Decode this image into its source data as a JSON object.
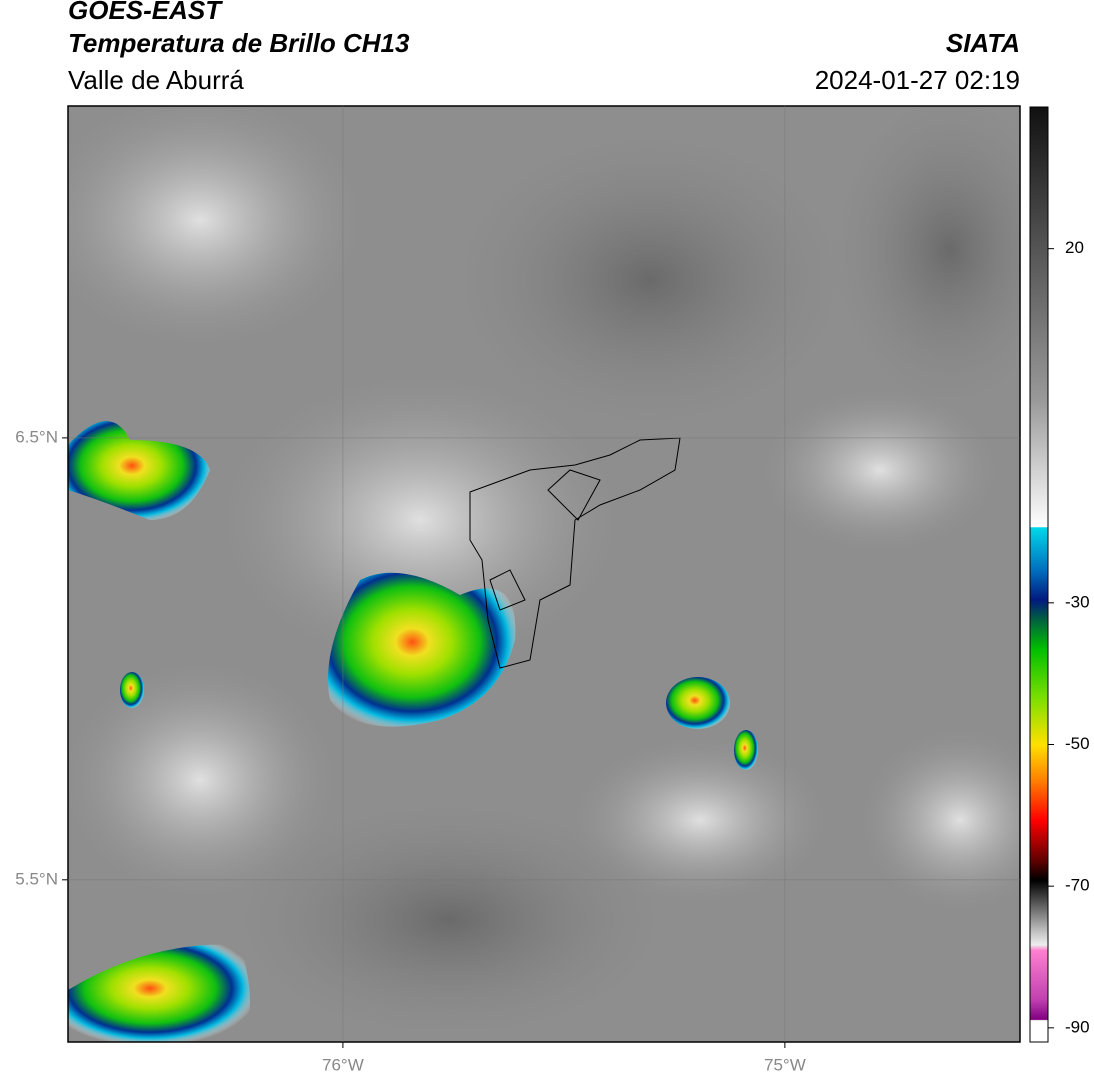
{
  "header": {
    "title": "GOES-EAST",
    "subtitle": "Temperatura de Brillo CH13",
    "region": "Valle de Aburrá",
    "source": "SIATA",
    "datetime": "2024-01-27 02:19"
  },
  "map": {
    "xlim": [
      -76.622,
      -74.468
    ],
    "ylim": [
      5.133,
      7.251
    ],
    "xticks": [
      {
        "value": -76,
        "label": "76°W"
      },
      {
        "value": -75,
        "label": "75°W"
      }
    ],
    "yticks": [
      {
        "value": 6.5,
        "label": "6.5°N"
      },
      {
        "value": 5.5,
        "label": "5.5°N"
      }
    ],
    "grid": true
  },
  "colorbar": {
    "lim": [
      -92,
      40
    ],
    "ticks": [
      20,
      -30,
      -50,
      -70,
      -90
    ]
  }
}
